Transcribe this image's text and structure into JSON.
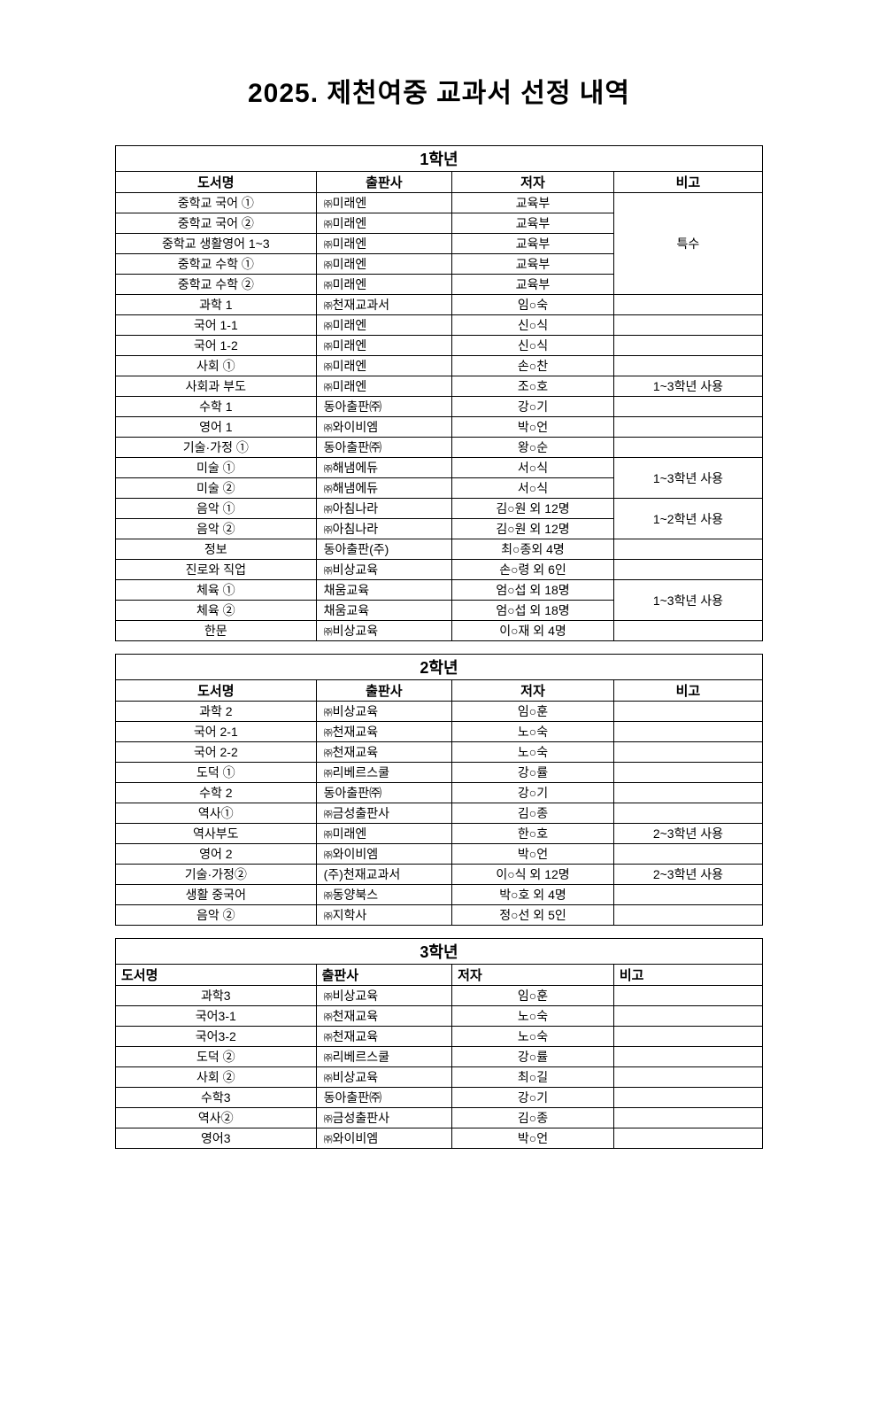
{
  "title": "2025. 제천여중 교과서 선정 내역",
  "columns": {
    "book": "도서명",
    "publisher": "출판사",
    "author": "저자",
    "note": "비고"
  },
  "grades": {
    "g1": {
      "label": "1학년"
    },
    "g2": {
      "label": "2학년"
    },
    "g3": {
      "label": "3학년"
    }
  },
  "g1_rows": [
    {
      "book": "중학교 국어 ①",
      "pub_prefix": "㈜",
      "pub": "미래엔",
      "author": "교육부"
    },
    {
      "book": "중학교 국어 ②",
      "pub_prefix": "㈜",
      "pub": "미래엔",
      "author": "교육부"
    },
    {
      "book": "중학교 생활영어 1~3",
      "pub_prefix": "㈜",
      "pub": "미래엔",
      "author": "교육부"
    },
    {
      "book": "중학교 수학 ①",
      "pub_prefix": "㈜",
      "pub": "미래엔",
      "author": "교육부"
    },
    {
      "book": "중학교 수학 ②",
      "pub_prefix": "㈜",
      "pub": "미래엔",
      "author": "교육부"
    },
    {
      "book": "과학 1",
      "pub_prefix": "㈜",
      "pub": "천재교과서",
      "author": "임○숙"
    },
    {
      "book": "국어 1-1",
      "pub_prefix": "㈜",
      "pub": "미래엔",
      "author": "신○식"
    },
    {
      "book": "국어 1-2",
      "pub_prefix": "㈜",
      "pub": "미래엔",
      "author": "신○식"
    },
    {
      "book": "사회 ①",
      "pub_prefix": "㈜",
      "pub": "미래엔",
      "author": "손○찬"
    },
    {
      "book": "사회과 부도",
      "pub_prefix": "㈜",
      "pub": "미래엔",
      "author": "조○호",
      "note": "1~3학년 사용"
    },
    {
      "book": "수학 1",
      "pub_prefix": "",
      "pub": "동아출판㈜",
      "author": "강○기"
    },
    {
      "book": "영어 1",
      "pub_prefix": "㈜",
      "pub": "와이비엠",
      "author": "박○언"
    },
    {
      "book": "기술·가정 ①",
      "pub_prefix": "",
      "pub": "동아출판㈜",
      "author": "왕○순"
    },
    {
      "book": "미술 ①",
      "pub_prefix": "㈜",
      "pub": "해냄에듀",
      "author": "서○식"
    },
    {
      "book": "미술 ②",
      "pub_prefix": "㈜",
      "pub": "해냄에듀",
      "author": "서○식"
    },
    {
      "book": "음악 ①",
      "pub_prefix": "㈜",
      "pub": "아침나라",
      "author": "김○원 외 12명"
    },
    {
      "book": "음악 ②",
      "pub_prefix": "㈜",
      "pub": "아침나라",
      "author": "김○원 외 12명"
    },
    {
      "book": "정보",
      "pub_prefix": "",
      "pub": "동아출판(주)",
      "author": "최○종외 4명"
    },
    {
      "book": "진로와 직업",
      "pub_prefix": "㈜",
      "pub": "비상교육",
      "author": "손○령 외 6인"
    },
    {
      "book": "체육 ①",
      "pub_prefix": "",
      "pub": "채움교육",
      "author": "엄○섭 외 18명"
    },
    {
      "book": "체육 ②",
      "pub_prefix": "",
      "pub": "채움교육",
      "author": "엄○섭 외 18명"
    },
    {
      "book": "한문",
      "pub_prefix": "㈜",
      "pub": "비상교육",
      "author": "이○재 외 4명"
    }
  ],
  "g1_notes": {
    "special": "특수",
    "art": "1~3학년 사용",
    "music": "1~2학년 사용",
    "pe": "1~3학년 사용"
  },
  "g2_rows": [
    {
      "book": "과학 2",
      "pub_prefix": "㈜",
      "pub": "비상교육",
      "author": "임○훈"
    },
    {
      "book": "국어 2-1",
      "pub_prefix": "㈜",
      "pub": "천재교육",
      "author": "노○숙"
    },
    {
      "book": "국어 2-2",
      "pub_prefix": "㈜",
      "pub": "천재교육",
      "author": "노○숙"
    },
    {
      "book": "도덕 ①",
      "pub_prefix": "㈜",
      "pub": "리베르스쿨",
      "author": "강○률"
    },
    {
      "book": "수학 2",
      "pub_prefix": "",
      "pub": "동아출판㈜",
      "author": "강○기"
    },
    {
      "book": "역사①",
      "pub_prefix": "㈜",
      "pub": "금성출판사",
      "author": "김○종"
    },
    {
      "book": "역사부도",
      "pub_prefix": "㈜",
      "pub": "미래엔",
      "author": "한○호",
      "note": "2~3학년 사용"
    },
    {
      "book": "영어 2",
      "pub_prefix": "㈜",
      "pub": "와이비엠",
      "author": "박○언"
    },
    {
      "book": "기술·가정②",
      "pub_prefix": "",
      "pub": "(주)천재교과서",
      "author": "이○식 외 12명",
      "note": "2~3학년 사용"
    },
    {
      "book": "생활 중국어",
      "pub_prefix": "㈜",
      "pub": "동양북스",
      "author": "박○호 외 4명"
    },
    {
      "book": "음악 ②",
      "pub_prefix": "㈜",
      "pub": "지학사",
      "author": "정○선 외 5인"
    }
  ],
  "g3_rows": [
    {
      "book": "과학3",
      "pub_prefix": "㈜",
      "pub": "비상교육",
      "author": "임○훈"
    },
    {
      "book": "국어3-1",
      "pub_prefix": "㈜",
      "pub": "천재교육",
      "author": "노○숙"
    },
    {
      "book": "국어3-2",
      "pub_prefix": "㈜",
      "pub": "천재교육",
      "author": "노○숙"
    },
    {
      "book": "도덕 ②",
      "pub_prefix": "㈜",
      "pub": "리베르스쿨",
      "author": "강○률"
    },
    {
      "book": "사회 ②",
      "pub_prefix": "㈜",
      "pub": "비상교육",
      "author": "최○길"
    },
    {
      "book": "수학3",
      "pub_prefix": "",
      "pub": "동아출판㈜",
      "author": "강○기"
    },
    {
      "book": "역사②",
      "pub_prefix": "㈜",
      "pub": "금성출판사",
      "author": "김○종"
    },
    {
      "book": "영어3",
      "pub_prefix": "㈜",
      "pub": "와이비엠",
      "author": "박○언"
    }
  ]
}
